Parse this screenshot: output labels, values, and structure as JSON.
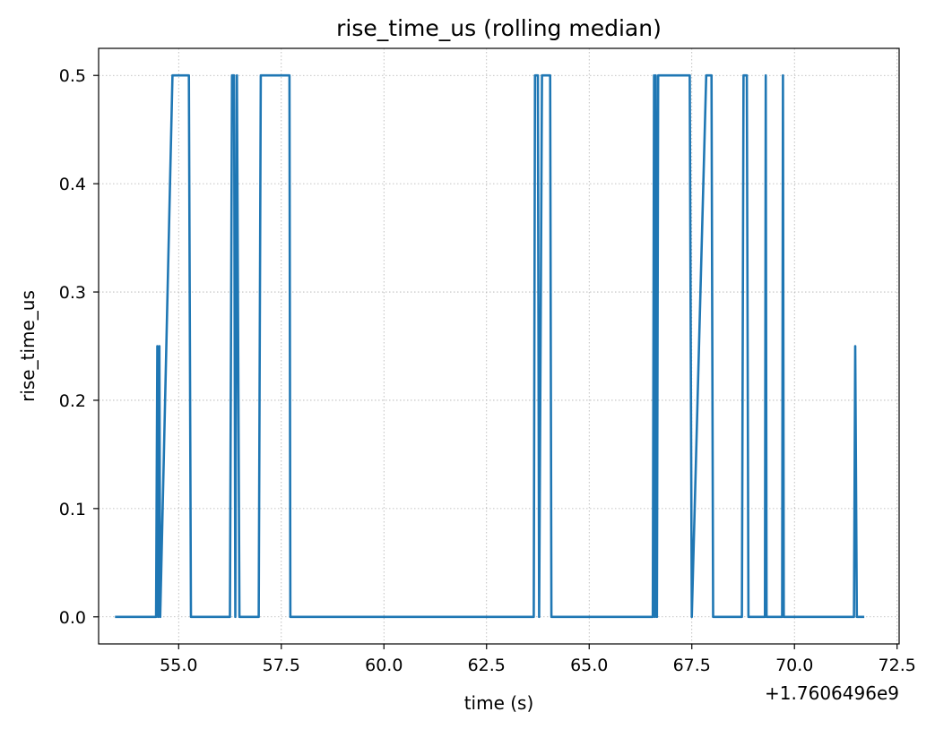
{
  "chart_data": {
    "type": "line",
    "title": "rise_time_us (rolling median)",
    "xlabel": "time (s)",
    "ylabel": "rise_time_us",
    "x_offset_label": "+1.7606496e9",
    "xlim": [
      53.05,
      72.55
    ],
    "ylim": [
      -0.025,
      0.525
    ],
    "xticks": [
      55.0,
      57.5,
      60.0,
      62.5,
      65.0,
      67.5,
      70.0,
      72.5
    ],
    "xtick_labels": [
      "55.0",
      "57.5",
      "60.0",
      "62.5",
      "65.0",
      "67.5",
      "70.0",
      "72.5"
    ],
    "yticks": [
      0.0,
      0.1,
      0.2,
      0.3,
      0.4,
      0.5
    ],
    "ytick_labels": [
      "0.0",
      "0.1",
      "0.2",
      "0.3",
      "0.4",
      "0.5"
    ],
    "grid": true,
    "series": [
      {
        "color": "#1f77b4",
        "x": [
          53.45,
          54.45,
          54.48,
          54.5,
          54.53,
          54.55,
          54.85,
          55.25,
          55.3,
          56.25,
          56.3,
          56.35,
          56.38,
          56.42,
          56.48,
          56.95,
          57.0,
          57.7,
          57.72,
          63.65,
          63.68,
          63.75,
          63.78,
          63.85,
          63.87,
          64.05,
          64.08,
          64.2,
          64.23,
          66.55,
          66.58,
          66.6,
          66.62,
          66.65,
          66.68,
          67.45,
          67.5,
          67.85,
          67.9,
          67.98,
          68.02,
          68.72,
          68.76,
          68.84,
          68.88,
          69.28,
          69.3,
          69.32,
          69.35,
          69.7,
          69.72,
          69.74,
          69.76,
          71.45,
          71.48,
          71.52,
          71.55,
          71.7
        ],
        "y": [
          0.0,
          0.0,
          0.25,
          0.0,
          0.25,
          0.0,
          0.5,
          0.5,
          0.0,
          0.0,
          0.5,
          0.5,
          0.0,
          0.5,
          0.0,
          0.0,
          0.5,
          0.5,
          0.0,
          0.0,
          0.5,
          0.5,
          0.0,
          0.5,
          0.5,
          0.5,
          0.0,
          0.0,
          0.0,
          0.0,
          0.5,
          0.0,
          0.5,
          0.0,
          0.5,
          0.5,
          0.0,
          0.5,
          0.5,
          0.5,
          0.0,
          0.0,
          0.5,
          0.5,
          0.0,
          0.0,
          0.5,
          0.0,
          0.0,
          0.0,
          0.5,
          0.0,
          0.0,
          0.0,
          0.25,
          0.0,
          0.0,
          0.0
        ]
      }
    ]
  }
}
